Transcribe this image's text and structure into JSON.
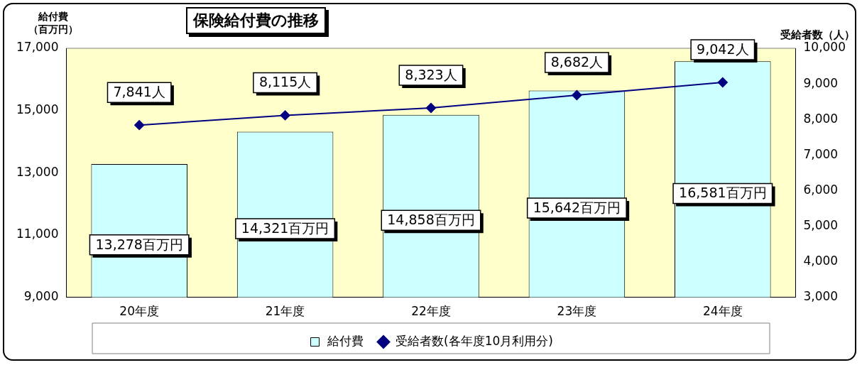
{
  "chart_data": {
    "type": "bar",
    "title": "保険給付費の推移",
    "ylabel": "給付費（百万円）",
    "y2label": "受給者数（人）",
    "categories": [
      "20年度",
      "21年度",
      "22年度",
      "23年度",
      "24年度"
    ],
    "series": [
      {
        "name": "給付費",
        "color": "#ccffff",
        "values": [
          13278,
          14321,
          14858,
          15642,
          16581
        ],
        "value_labels": [
          "13,278百万円",
          "14,321百万円",
          "14,858百万円",
          "15,642百万円",
          "16,581百万円"
        ]
      },
      {
        "name": "受給者数(各年度10月利用分)",
        "type": "line",
        "axis": "y2",
        "color": "#000080",
        "values": [
          7841,
          8115,
          8323,
          8682,
          9042
        ],
        "value_labels": [
          "7,841人",
          "8,115人",
          "8,323人",
          "8,682人",
          "9,042人"
        ]
      }
    ],
    "ylim": [
      9000,
      17000
    ],
    "yticks": [
      {
        "value": 9000,
        "label": "9,000"
      },
      {
        "value": 11000,
        "label": "11,000"
      },
      {
        "value": 13000,
        "label": "13,000"
      },
      {
        "value": 15000,
        "label": "15,000"
      },
      {
        "value": 17000,
        "label": "17,000"
      }
    ],
    "y2lim": [
      3000,
      10000
    ],
    "y2ticks": [
      {
        "value": 3000,
        "label": "3,000"
      },
      {
        "value": 4000,
        "label": "4,000"
      },
      {
        "value": 5000,
        "label": "5,000"
      },
      {
        "value": 6000,
        "label": "6,000"
      },
      {
        "value": 7000,
        "label": "7,000"
      },
      {
        "value": 8000,
        "label": "8,000"
      },
      {
        "value": 9000,
        "label": "9,000"
      },
      {
        "value": 10000,
        "label": "10,000"
      }
    ],
    "legend": "bottom",
    "marker": "diamond",
    "line_style": "solid"
  }
}
